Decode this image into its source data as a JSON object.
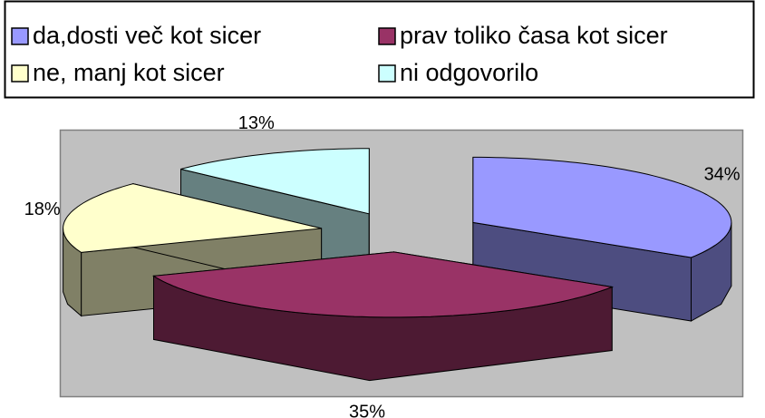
{
  "chart_data": {
    "type": "pie",
    "three_d": true,
    "exploded": true,
    "categories": [
      "da,dosti več kot sicer",
      "prav toliko časa kot sicer",
      "ne, manj kot sicer",
      "ni odgovorilo"
    ],
    "values": [
      34,
      35,
      18,
      13
    ],
    "value_labels": [
      "34%",
      "35%",
      "18%",
      "13%"
    ],
    "colors": [
      "#9999ff",
      "#993366",
      "#ffffcc",
      "#ccffff"
    ],
    "legend": "top"
  }
}
